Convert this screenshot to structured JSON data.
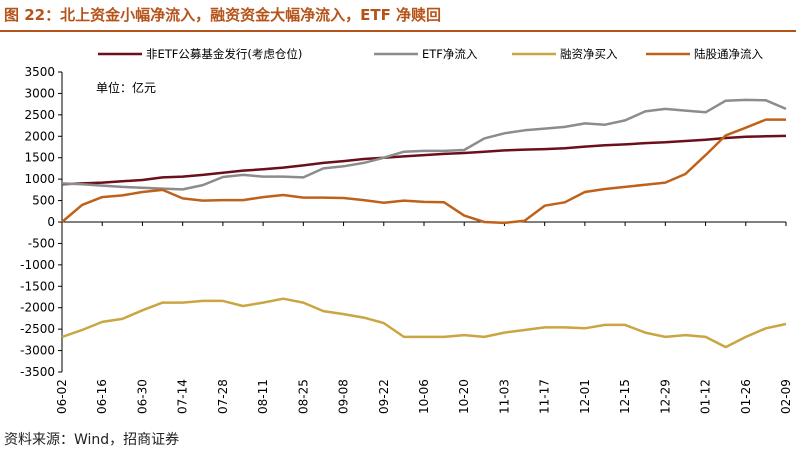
{
  "figure": {
    "title": "图 22：北上资金小幅净流入，融资资金大幅净流入，ETF 净赎回",
    "source": "资料来源：Wind，招商证券",
    "colors": {
      "title": "#b5541a",
      "rule": "#b5541a"
    }
  },
  "chart_data": {
    "type": "line",
    "unit_label": "单位：亿元",
    "ylim": [
      -3500,
      3500
    ],
    "ytick_step": 500,
    "grid": false,
    "legend_position": "top",
    "x": [
      "06-02",
      "06-09",
      "06-16",
      "06-23",
      "06-30",
      "07-07",
      "07-14",
      "07-21",
      "07-28",
      "08-04",
      "08-11",
      "08-18",
      "08-25",
      "09-01",
      "09-08",
      "09-15",
      "09-22",
      "09-29",
      "10-06",
      "10-13",
      "10-20",
      "10-27",
      "11-03",
      "11-10",
      "11-17",
      "11-24",
      "12-01",
      "12-08",
      "12-15",
      "12-22",
      "12-29",
      "01-05",
      "01-12",
      "01-19",
      "01-26",
      "02-02",
      "02-09"
    ],
    "xticks": [
      "06-02",
      "06-16",
      "06-30",
      "07-14",
      "07-28",
      "08-11",
      "08-25",
      "09-08",
      "09-22",
      "10-06",
      "10-20",
      "11-03",
      "11-17",
      "12-01",
      "12-15",
      "12-29",
      "01-12",
      "01-26",
      "02-09"
    ],
    "series": [
      {
        "name": "非ETF公募基金发行(考虑仓位)",
        "color": "#6b0f1a",
        "values": [
          880,
          900,
          920,
          950,
          980,
          1040,
          1060,
          1100,
          1150,
          1200,
          1230,
          1270,
          1320,
          1380,
          1420,
          1470,
          1500,
          1530,
          1560,
          1590,
          1610,
          1640,
          1670,
          1690,
          1700,
          1720,
          1760,
          1790,
          1810,
          1840,
          1860,
          1890,
          1920,
          1960,
          1990,
          2000,
          2010
        ]
      },
      {
        "name": "ETF净流入",
        "color": "#8c8c8c",
        "values": [
          900,
          880,
          850,
          820,
          800,
          780,
          760,
          860,
          1050,
          1100,
          1060,
          1060,
          1040,
          1250,
          1300,
          1380,
          1500,
          1640,
          1660,
          1660,
          1680,
          1950,
          2070,
          2140,
          2180,
          2220,
          2300,
          2270,
          2370,
          2580,
          2640,
          2600,
          2560,
          2830,
          2850,
          2840,
          2640
        ]
      },
      {
        "name": "融资净买入",
        "color": "#c9a642",
        "values": [
          -2680,
          -2520,
          -2330,
          -2260,
          -2060,
          -1880,
          -1880,
          -1840,
          -1840,
          -1960,
          -1880,
          -1790,
          -1880,
          -2080,
          -2150,
          -2230,
          -2360,
          -2680,
          -2680,
          -2680,
          -2640,
          -2680,
          -2580,
          -2520,
          -2460,
          -2460,
          -2480,
          -2400,
          -2400,
          -2580,
          -2680,
          -2640,
          -2680,
          -2920,
          -2680,
          -2480,
          -2380
        ]
      },
      {
        "name": "陆股通净流入",
        "color": "#c0611a",
        "values": [
          0,
          400,
          580,
          620,
          700,
          750,
          550,
          500,
          510,
          510,
          580,
          630,
          570,
          570,
          560,
          510,
          450,
          500,
          470,
          460,
          150,
          0,
          -20,
          30,
          380,
          460,
          700,
          770,
          820,
          870,
          920,
          1120,
          1560,
          2020,
          2200,
          2390,
          2390
        ]
      }
    ]
  }
}
